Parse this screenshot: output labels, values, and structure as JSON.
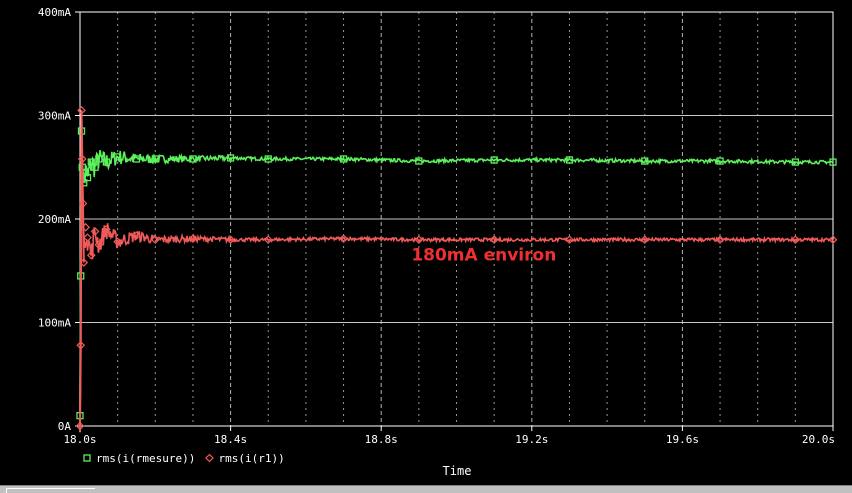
{
  "chart_data": {
    "type": "line",
    "title": "",
    "xlabel": "Time",
    "ylabel": "",
    "xlim": [
      18.0,
      20.0
    ],
    "ylim": [
      0,
      400
    ],
    "x_unit": "s",
    "y_unit": "mA",
    "x_ticks": [
      18.0,
      18.4,
      18.8,
      19.2,
      19.6,
      20.0
    ],
    "x_tick_labels": [
      "18.0s",
      "18.4s",
      "18.8s",
      "19.2s",
      "19.6s",
      "20.0s"
    ],
    "y_ticks": [
      0,
      100,
      200,
      300,
      400
    ],
    "y_tick_labels": [
      "0A",
      "100mA",
      "200mA",
      "300mA",
      "400mA"
    ],
    "grid": true,
    "legend_position": "bottom-left",
    "series": [
      {
        "name": "rms(i(rmesure))",
        "marker": "square",
        "color": "#5cf05c",
        "x": [
          18.0,
          18.002,
          18.004,
          18.006,
          18.01,
          18.015,
          18.02,
          18.03,
          18.04,
          18.05,
          18.07,
          18.1,
          18.15,
          18.2,
          18.3,
          18.4,
          18.5,
          18.7,
          18.9,
          19.1,
          19.3,
          19.5,
          19.7,
          19.9,
          20.0
        ],
        "values": [
          10,
          145,
          285,
          250,
          235,
          245,
          240,
          255,
          250,
          258,
          255,
          260,
          258,
          258,
          258,
          259,
          258,
          258,
          256,
          257,
          257,
          256,
          256,
          255,
          255
        ]
      },
      {
        "name": "rms(i(r1))",
        "marker": "diamond",
        "color": "#f05a5a",
        "x": [
          18.0,
          18.002,
          18.004,
          18.006,
          18.008,
          18.01,
          18.015,
          18.02,
          18.03,
          18.04,
          18.05,
          18.07,
          18.1,
          18.15,
          18.2,
          18.3,
          18.4,
          18.5,
          18.7,
          18.9,
          19.1,
          19.3,
          19.5,
          19.7,
          19.9,
          20.0
        ],
        "values": [
          0,
          78,
          305,
          258,
          215,
          158,
          192,
          182,
          165,
          188,
          175,
          190,
          178,
          184,
          180,
          181,
          180,
          180,
          181,
          180,
          180,
          180,
          180,
          180,
          180,
          180
        ]
      }
    ],
    "annotations": [
      {
        "text": "180mA environ",
        "x": 18.88,
        "y": 160,
        "color": "#f03030"
      }
    ]
  },
  "colors": {
    "background": "#000000",
    "grid": "#c8c8c8",
    "axis": "#ffffff",
    "text": "#ffffff"
  }
}
